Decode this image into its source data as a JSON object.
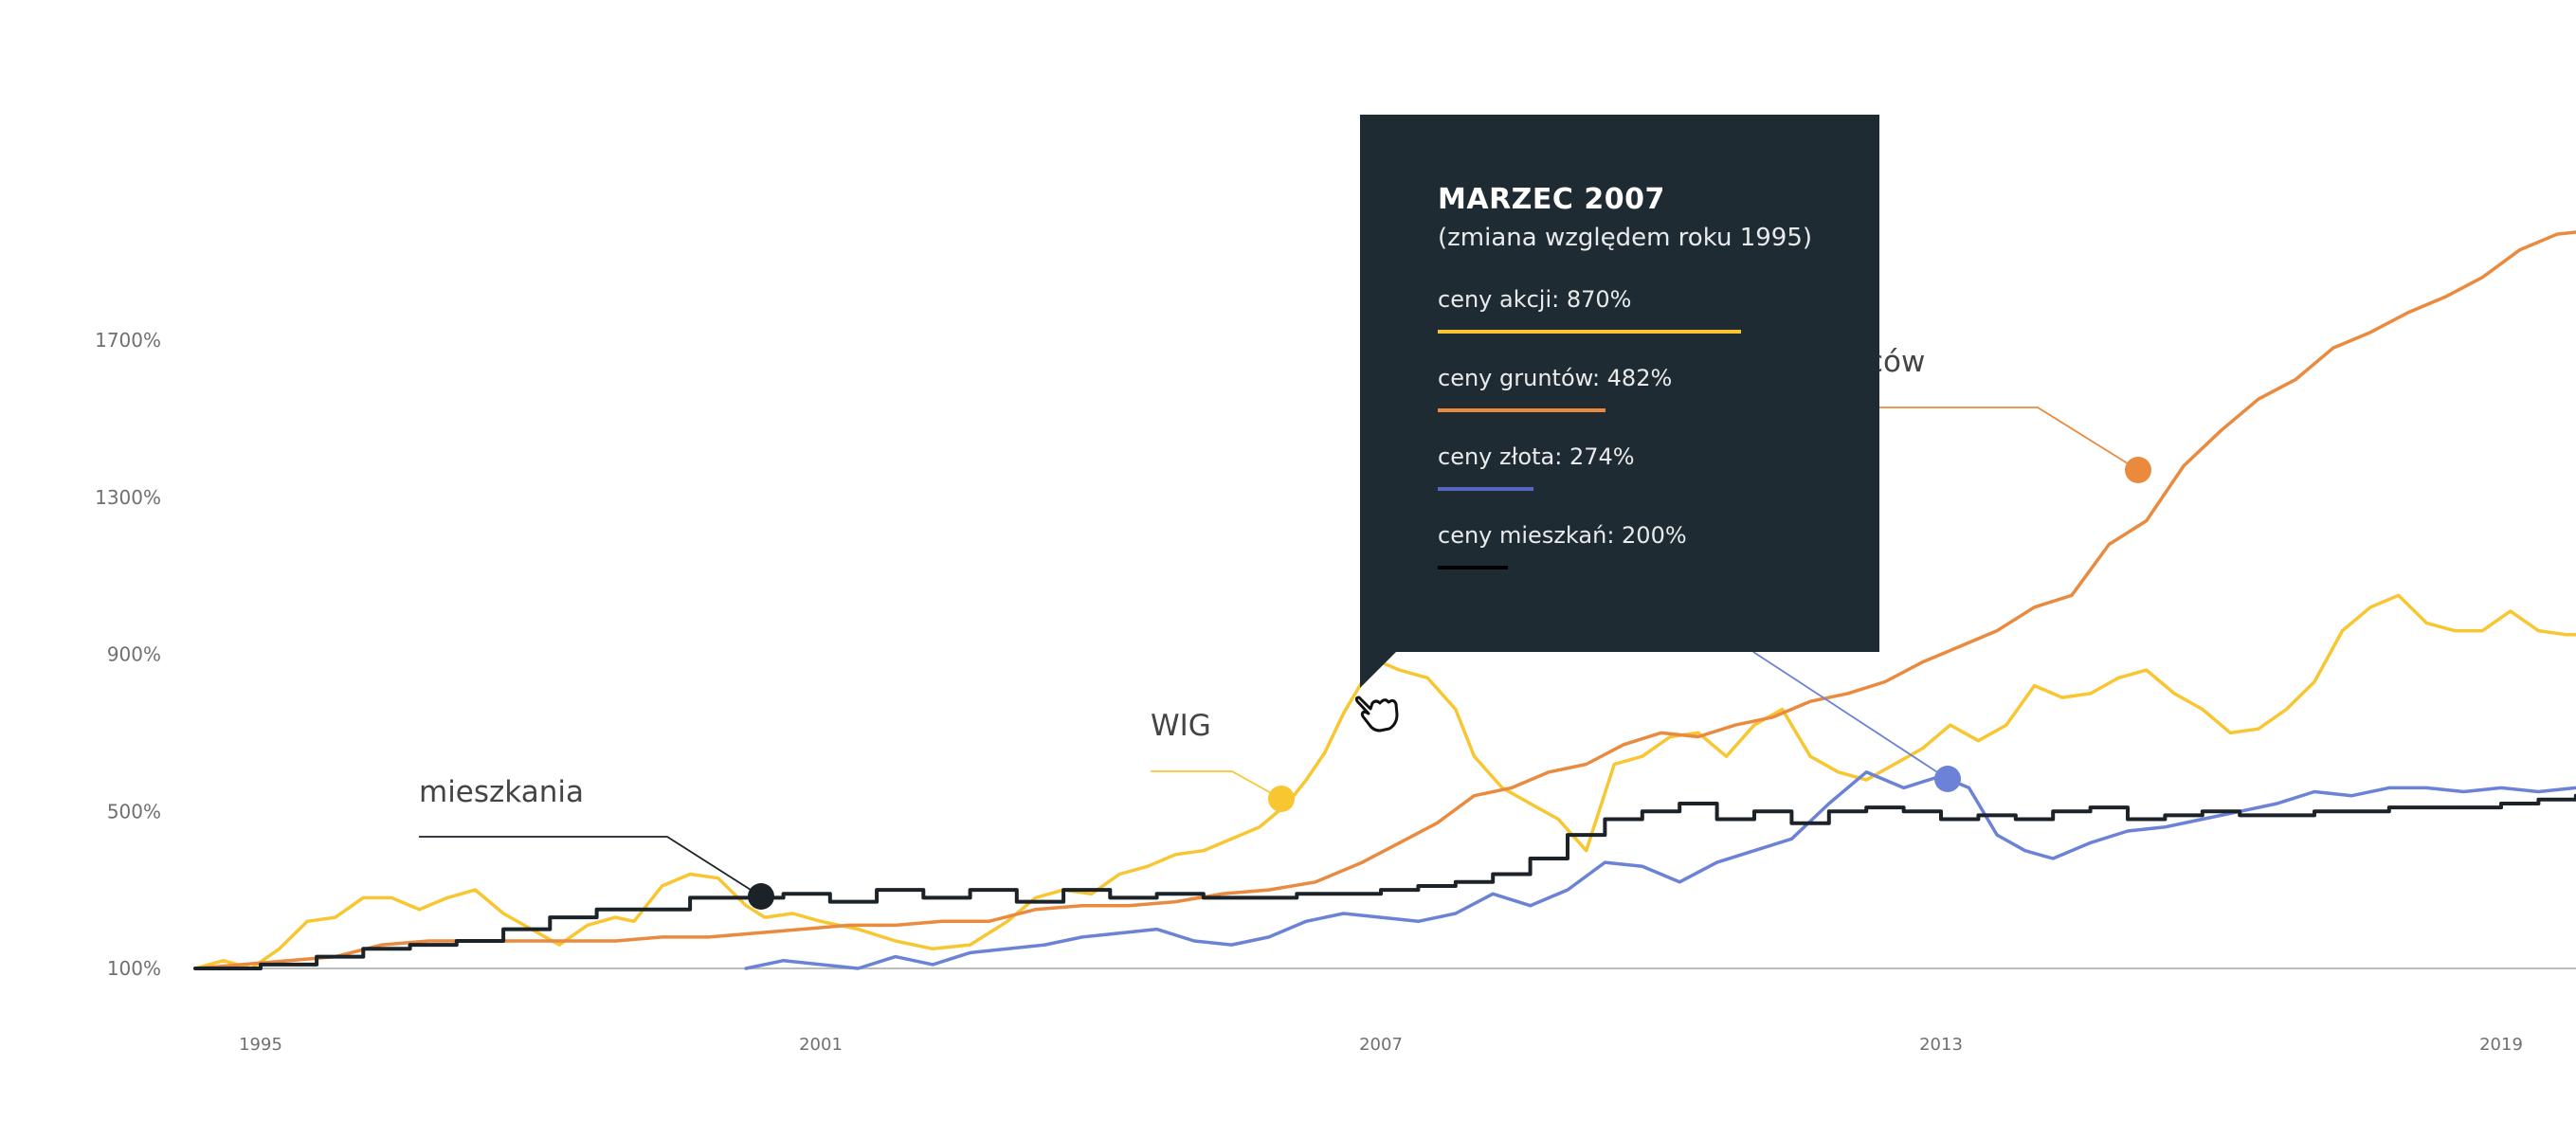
{
  "chart_data": {
    "type": "line",
    "title": "",
    "xlabel": "",
    "ylabel": "",
    "ylim": [
      100,
      2100
    ],
    "xlim": [
      1994.2,
      2020.0
    ],
    "y_ticks": [
      "100%",
      "500%",
      "900%",
      "1300%",
      "1700%"
    ],
    "y_tick_values": [
      100,
      500,
      900,
      1300,
      1700
    ],
    "x_ticks": [
      "1995",
      "2001",
      "2007",
      "2013",
      "2019"
    ],
    "x_tick_values": [
      1995,
      2001,
      2007,
      2013,
      2019
    ],
    "grid": false,
    "series": [
      {
        "name": "WIG",
        "color": "#f8c630",
        "x": [
          1994.3,
          1994.6,
          1994.9,
          1995.2,
          1995.5,
          1995.8,
          1996.1,
          1996.4,
          1996.7,
          1997.0,
          1997.3,
          1997.6,
          1997.9,
          1998.2,
          1998.5,
          1998.8,
          1999.0,
          1999.3,
          1999.6,
          1999.9,
          2000.2,
          2000.4,
          2000.7,
          2001.0,
          2001.4,
          2001.8,
          2002.2,
          2002.6,
          2003.0,
          2003.3,
          2003.6,
          2003.9,
          2004.2,
          2004.5,
          2004.8,
          2005.1,
          2005.4,
          2005.7,
          2006.0,
          2006.2,
          2006.4,
          2006.6,
          2006.8,
          2007.0,
          2007.2,
          2007.5,
          2007.8,
          2008.0,
          2008.3,
          2008.6,
          2008.9,
          2009.2,
          2009.5,
          2009.8,
          2010.1,
          2010.4,
          2010.7,
          2011.0,
          2011.3,
          2011.6,
          2011.9,
          2012.2,
          2012.5,
          2012.8,
          2013.1,
          2013.4,
          2013.7,
          2014.0,
          2014.3,
          2014.6,
          2014.9,
          2015.2,
          2015.5,
          2015.8,
          2016.1,
          2016.4,
          2016.7,
          2017.0,
          2017.3,
          2017.6,
          2017.9,
          2018.2,
          2018.5,
          2018.8,
          2019.1,
          2019.4,
          2019.7,
          2020.0
        ],
        "values": [
          100,
          120,
          100,
          150,
          220,
          230,
          280,
          280,
          250,
          280,
          300,
          240,
          200,
          160,
          210,
          230,
          220,
          310,
          340,
          330,
          260,
          230,
          240,
          220,
          200,
          170,
          150,
          160,
          220,
          280,
          300,
          290,
          340,
          360,
          390,
          400,
          430,
          460,
          520,
          580,
          650,
          750,
          830,
          880,
          860,
          840,
          760,
          640,
          560,
          520,
          480,
          400,
          620,
          640,
          690,
          700,
          640,
          720,
          760,
          640,
          600,
          580,
          620,
          660,
          720,
          680,
          720,
          820,
          790,
          800,
          840,
          860,
          800,
          760,
          700,
          710,
          760,
          830,
          960,
          1020,
          1050,
          980,
          960,
          960,
          1010,
          960,
          950,
          950
        ]
      },
      {
        "name": "grunty",
        "color": "#ea8a3e",
        "x": [
          1994.3,
          1994.8,
          1995.3,
          1995.8,
          1996.3,
          1996.8,
          1997.3,
          1997.8,
          1998.3,
          1998.8,
          1999.3,
          1999.8,
          2000.3,
          2000.8,
          2001.3,
          2001.8,
          2002.3,
          2002.8,
          2003.3,
          2003.8,
          2004.3,
          2004.8,
          2005.3,
          2005.8,
          2006.3,
          2006.8,
          2007.2,
          2007.6,
          2008.0,
          2008.4,
          2008.8,
          2009.2,
          2009.6,
          2010.0,
          2010.4,
          2010.8,
          2011.2,
          2011.6,
          2012.0,
          2012.4,
          2012.8,
          2013.2,
          2013.6,
          2014.0,
          2014.4,
          2014.8,
          2015.2,
          2015.6,
          2016.0,
          2016.4,
          2016.8,
          2017.2,
          2017.6,
          2018.0,
          2018.4,
          2018.8,
          2019.2,
          2019.6,
          2020.0
        ],
        "values": [
          100,
          110,
          120,
          130,
          160,
          170,
          170,
          170,
          170,
          170,
          180,
          180,
          190,
          200,
          210,
          210,
          220,
          220,
          250,
          260,
          260,
          270,
          290,
          300,
          320,
          370,
          420,
          470,
          540,
          560,
          600,
          620,
          670,
          700,
          690,
          720,
          740,
          780,
          800,
          830,
          880,
          920,
          960,
          1020,
          1050,
          1180,
          1240,
          1380,
          1470,
          1550,
          1600,
          1680,
          1720,
          1770,
          1810,
          1860,
          1930,
          1970,
          1980
        ]
      },
      {
        "name": "złoto",
        "color": "#6b82d6",
        "x": [
          2000.2,
          2000.6,
          2001.0,
          2001.4,
          2001.8,
          2002.2,
          2002.6,
          2003.0,
          2003.4,
          2003.8,
          2004.2,
          2004.6,
          2005.0,
          2005.4,
          2005.8,
          2006.2,
          2006.6,
          2007.0,
          2007.4,
          2007.8,
          2008.2,
          2008.6,
          2009.0,
          2009.4,
          2009.8,
          2010.2,
          2010.6,
          2011.0,
          2011.4,
          2011.8,
          2012.2,
          2012.6,
          2013.0,
          2013.3,
          2013.6,
          2013.9,
          2014.2,
          2014.6,
          2015.0,
          2015.4,
          2015.8,
          2016.2,
          2016.6,
          2017.0,
          2017.4,
          2017.8,
          2018.2,
          2018.6,
          2019.0,
          2019.4,
          2019.8,
          2020.0
        ],
        "values": [
          100,
          120,
          110,
          100,
          130,
          110,
          140,
          150,
          160,
          180,
          190,
          200,
          170,
          160,
          180,
          220,
          240,
          230,
          220,
          240,
          290,
          260,
          300,
          370,
          360,
          320,
          370,
          400,
          430,
          520,
          600,
          560,
          590,
          560,
          440,
          400,
          380,
          420,
          450,
          460,
          480,
          500,
          520,
          550,
          540,
          560,
          560,
          550,
          560,
          550,
          560,
          570
        ]
      },
      {
        "name": "mieszkania",
        "color": "#1b2228",
        "x": [
          1994.3,
          1995.0,
          1995.6,
          1996.1,
          1996.6,
          1997.1,
          1997.6,
          1998.1,
          1998.6,
          1999.1,
          1999.6,
          2000.1,
          2000.6,
          2001.1,
          2001.6,
          2002.1,
          2002.6,
          2003.1,
          2003.6,
          2004.1,
          2004.6,
          2005.1,
          2005.6,
          2006.1,
          2006.6,
          2007.0,
          2007.4,
          2007.8,
          2008.2,
          2008.6,
          2009.0,
          2009.4,
          2009.8,
          2010.2,
          2010.6,
          2011.0,
          2011.4,
          2011.8,
          2012.2,
          2012.6,
          2013.0,
          2013.4,
          2013.8,
          2014.2,
          2014.6,
          2015.0,
          2015.4,
          2015.8,
          2016.2,
          2016.6,
          2017.0,
          2017.4,
          2017.8,
          2018.2,
          2018.6,
          2019.0,
          2019.4,
          2019.8,
          2020.0
        ],
        "values": [
          100,
          110,
          130,
          150,
          160,
          170,
          200,
          230,
          250,
          250,
          280,
          280,
          290,
          270,
          300,
          280,
          300,
          270,
          300,
          280,
          290,
          280,
          280,
          290,
          290,
          300,
          310,
          320,
          340,
          380,
          440,
          480,
          500,
          520,
          480,
          500,
          470,
          500,
          510,
          500,
          480,
          490,
          480,
          500,
          510,
          480,
          490,
          500,
          490,
          490,
          500,
          500,
          510,
          510,
          510,
          520,
          530,
          540,
          540
        ]
      }
    ],
    "direct_labels": [
      {
        "series": "mieszkania",
        "text": "mieszkania",
        "x": 2000.7,
        "y": 285
      },
      {
        "series": "WIG",
        "text": "WIG",
        "x": 2005.7,
        "y": 540
      },
      {
        "series": "grunty",
        "text": "ców",
        "x": 2015.9,
        "y": 1375
      },
      {
        "series": "złoto",
        "text": "",
        "x": 2013.2,
        "y": 590
      }
    ]
  },
  "tooltip": {
    "title": "MARZEC 2007",
    "subtitle": "(zmiana względem roku 1995)",
    "items": [
      {
        "label": "ceny akcji: 870%",
        "value": 870,
        "color": "#f8c630"
      },
      {
        "label": "ceny gruntów: 482%",
        "value": 482,
        "color": "#ea8a3e"
      },
      {
        "label": "ceny złota: 274%",
        "value": 274,
        "color": "#5468c4"
      },
      {
        "label": "ceny mieszkań: 200%",
        "value": 200,
        "color": "#000000"
      }
    ]
  },
  "cursor": {
    "icon": "hand-pointer-icon"
  }
}
